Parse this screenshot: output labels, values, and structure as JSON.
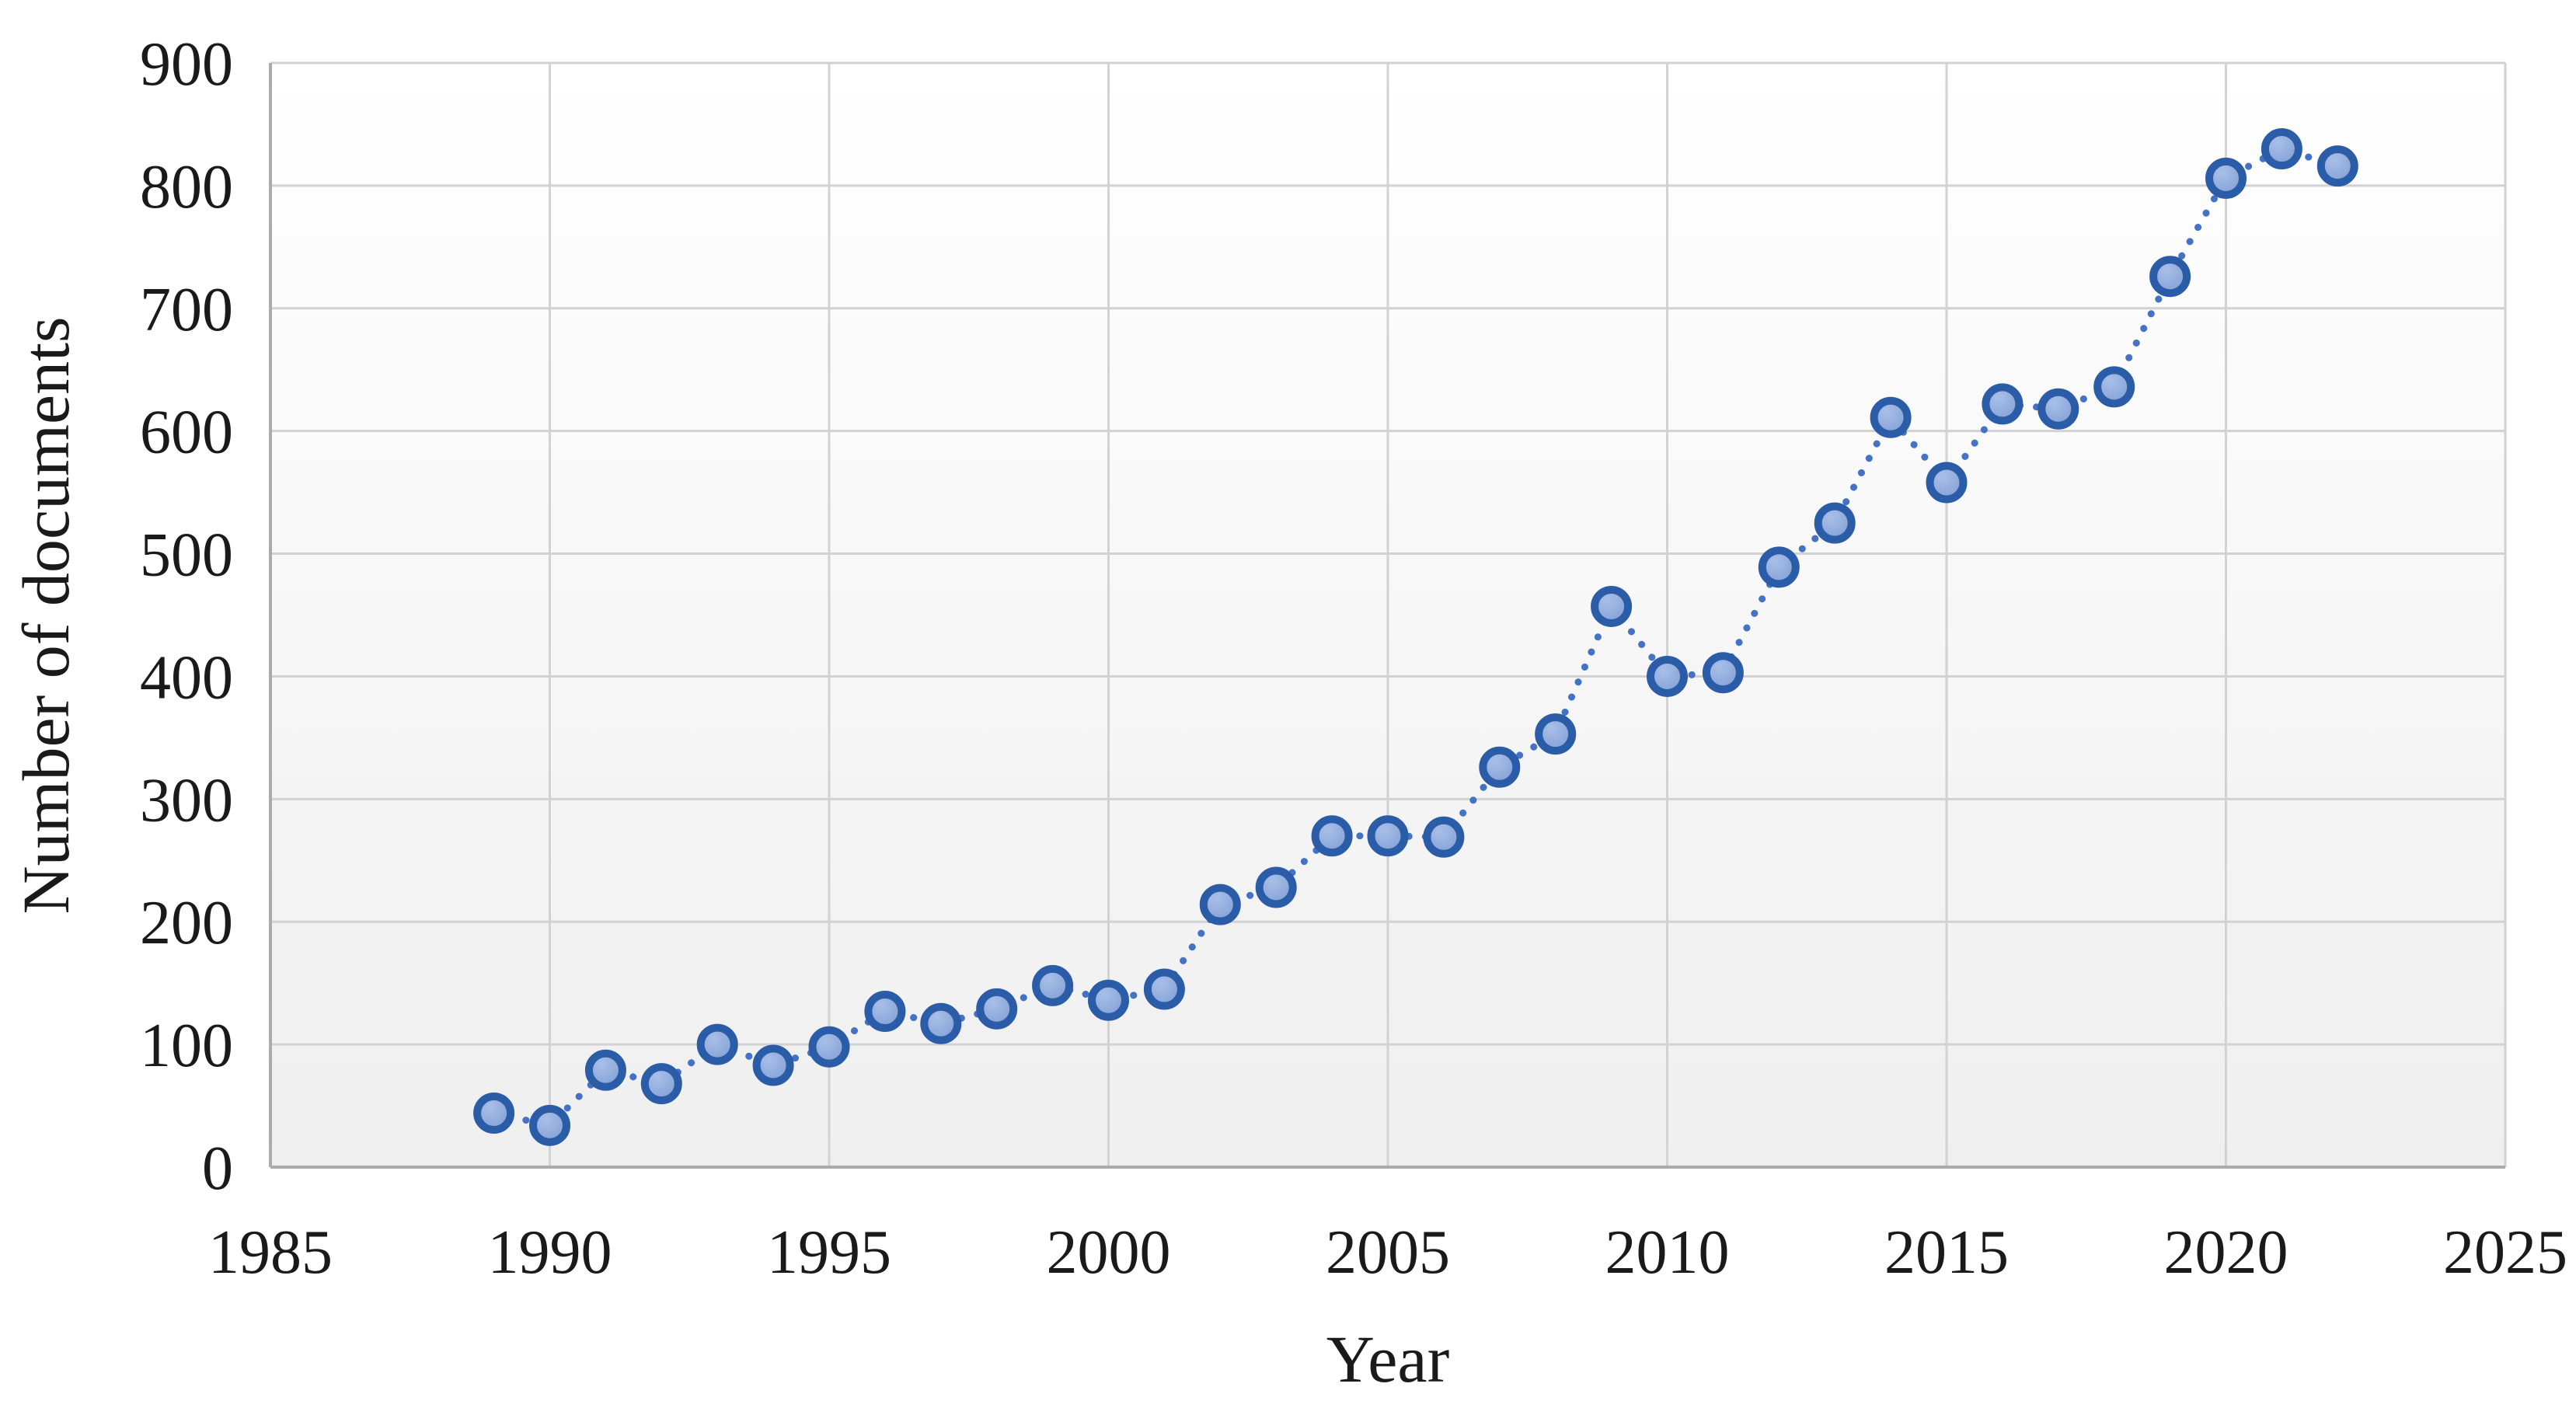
{
  "figure": {
    "background": "#ffffff"
  },
  "chart_data": {
    "type": "scatter",
    "title": "",
    "xlabel": "Year",
    "ylabel": "Number of documents",
    "xlim": [
      1985,
      2025
    ],
    "ylim": [
      0,
      900
    ],
    "x_ticks": [
      1985,
      1990,
      1995,
      2000,
      2005,
      2010,
      2015,
      2020,
      2025
    ],
    "y_ticks": [
      0,
      100,
      200,
      300,
      400,
      500,
      600,
      700,
      800,
      900
    ],
    "grid": "both",
    "legend_position": "none",
    "series": [
      {
        "name": "Number of documents",
        "marker": "circle",
        "line_style": "dotted",
        "x": [
          1989,
          1990,
          1991,
          1992,
          1993,
          1994,
          1995,
          1996,
          1997,
          1998,
          1999,
          2000,
          2001,
          2002,
          2003,
          2004,
          2005,
          2006,
          2007,
          2008,
          2009,
          2010,
          2011,
          2012,
          2013,
          2014,
          2015,
          2016,
          2017,
          2018,
          2019,
          2020,
          2021,
          2022
        ],
        "y": [
          44,
          34,
          79,
          68,
          100,
          83,
          98,
          127,
          117,
          129,
          148,
          136,
          145,
          214,
          228,
          270,
          270,
          269,
          326,
          353,
          457,
          400,
          403,
          489,
          525,
          611,
          558,
          622,
          618,
          636,
          726,
          806,
          830,
          816
        ]
      }
    ],
    "colors": {
      "marker_fill": "#8FAADC",
      "marker_fill_light": "#A9BFE8",
      "marker_fill_dark": "#7C9CD3",
      "marker_stroke": "#2A5CA8",
      "line": "#4472C4",
      "gridline": "#D2D2D2",
      "axis_line": "#ABABAB",
      "text": "#1A1A1A",
      "plot_bg_top": "#FFFFFF",
      "plot_bg_bottom": "#EFEFEF"
    }
  }
}
